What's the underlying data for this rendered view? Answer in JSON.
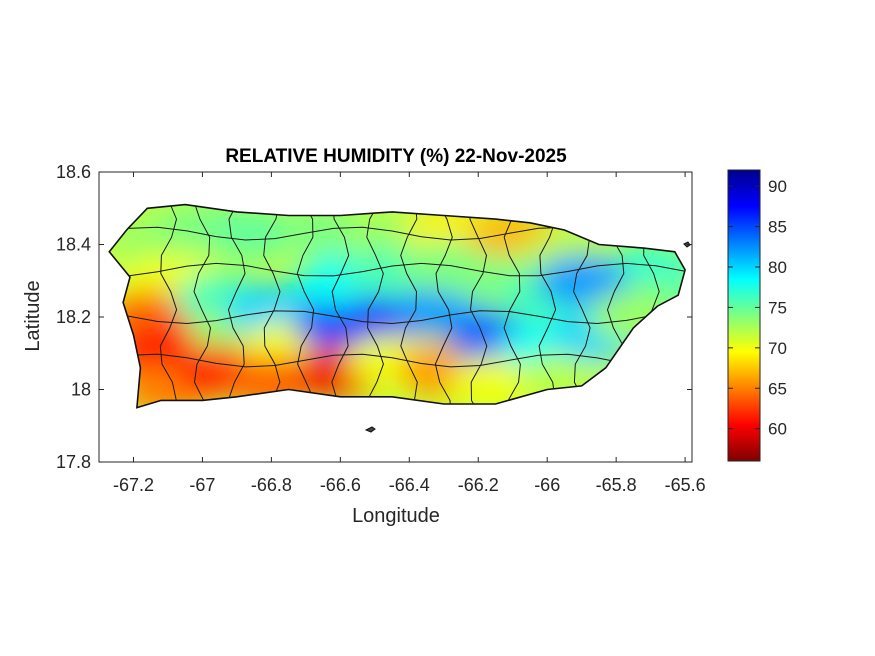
{
  "title": "RELATIVE HUMIDITY (%) 22-Nov-2025",
  "axes": {
    "xlabel": "Longitude",
    "ylabel": "Latitude",
    "xlim": [
      -67.3,
      -65.58
    ],
    "ylim": [
      17.8,
      18.6
    ],
    "xticks": [
      -67.2,
      -67,
      -66.8,
      -66.6,
      -66.4,
      -66.2,
      -66,
      -65.8,
      -65.6
    ],
    "xtick_labels": [
      "-67.2",
      "-67",
      "-66.8",
      "-66.6",
      "-66.4",
      "-66.2",
      "-66",
      "-65.8",
      "-65.6"
    ],
    "yticks": [
      17.8,
      18,
      18.2,
      18.4,
      18.6
    ],
    "ytick_labels": [
      "17.8",
      "18",
      "18.2",
      "18.4",
      "18.6"
    ]
  },
  "colorbar": {
    "colormap": "jet",
    "range": [
      56,
      92
    ],
    "ticks": [
      60,
      65,
      70,
      75,
      80,
      85,
      90
    ],
    "tick_labels": [
      "60",
      "65",
      "70",
      "75",
      "80",
      "85",
      "90"
    ],
    "stops": [
      "#800000",
      "#ff0000",
      "#ff8000",
      "#ffff00",
      "#80ff80",
      "#00ffff",
      "#0080ff",
      "#0000ff",
      "#000090"
    ]
  },
  "chart_data": {
    "type": "heatmap",
    "title": "RELATIVE HUMIDITY (%) 22-Nov-2025",
    "xlabel": "Longitude",
    "ylabel": "Latitude",
    "xlim": [
      -67.3,
      -65.58
    ],
    "ylim": [
      17.8,
      18.6
    ],
    "value_range": [
      56,
      92
    ],
    "units": "%",
    "region_outline": [
      [
        -67.27,
        18.38
      ],
      [
        -67.22,
        18.44
      ],
      [
        -67.16,
        18.5
      ],
      [
        -67.05,
        18.51
      ],
      [
        -66.9,
        18.49
      ],
      [
        -66.75,
        18.48
      ],
      [
        -66.6,
        18.48
      ],
      [
        -66.45,
        18.49
      ],
      [
        -66.3,
        18.48
      ],
      [
        -66.15,
        18.47
      ],
      [
        -66.05,
        18.46
      ],
      [
        -65.95,
        18.44
      ],
      [
        -65.85,
        18.4
      ],
      [
        -65.72,
        18.39
      ],
      [
        -65.63,
        18.38
      ],
      [
        -65.6,
        18.33
      ],
      [
        -65.62,
        18.26
      ],
      [
        -65.68,
        18.23
      ],
      [
        -65.75,
        18.17
      ],
      [
        -65.83,
        18.06
      ],
      [
        -65.9,
        18.01
      ],
      [
        -66.0,
        18.0
      ],
      [
        -66.15,
        17.96
      ],
      [
        -66.3,
        17.96
      ],
      [
        -66.45,
        17.98
      ],
      [
        -66.6,
        17.98
      ],
      [
        -66.75,
        18.0
      ],
      [
        -66.9,
        17.98
      ],
      [
        -67.0,
        17.97
      ],
      [
        -67.12,
        17.97
      ],
      [
        -67.19,
        17.95
      ],
      [
        -67.18,
        18.06
      ],
      [
        -67.2,
        18.15
      ],
      [
        -67.23,
        18.24
      ],
      [
        -67.21,
        18.31
      ]
    ],
    "field_samples": [
      {
        "lon": -67.15,
        "lat": 18.42,
        "rh": 73
      },
      {
        "lon": -67.0,
        "lat": 18.45,
        "rh": 74
      },
      {
        "lon": -66.85,
        "lat": 18.43,
        "rh": 75
      },
      {
        "lon": -66.65,
        "lat": 18.44,
        "rh": 74
      },
      {
        "lon": -66.45,
        "lat": 18.42,
        "rh": 73
      },
      {
        "lon": -66.28,
        "lat": 18.43,
        "rh": 69
      },
      {
        "lon": -66.1,
        "lat": 18.42,
        "rh": 67
      },
      {
        "lon": -65.95,
        "lat": 18.36,
        "rh": 72
      },
      {
        "lon": -65.8,
        "lat": 18.29,
        "rh": 90
      },
      {
        "lon": -65.7,
        "lat": 18.33,
        "rh": 77
      },
      {
        "lon": -65.68,
        "lat": 18.25,
        "rh": 75
      },
      {
        "lon": -67.1,
        "lat": 18.3,
        "rh": 70
      },
      {
        "lon": -67.15,
        "lat": 18.2,
        "rh": 64
      },
      {
        "lon": -67.12,
        "lat": 18.1,
        "rh": 61
      },
      {
        "lon": -67.1,
        "lat": 18.0,
        "rh": 65
      },
      {
        "lon": -66.95,
        "lat": 18.25,
        "rh": 76
      },
      {
        "lon": -66.9,
        "lat": 18.15,
        "rh": 73
      },
      {
        "lon": -66.95,
        "lat": 18.05,
        "rh": 62
      },
      {
        "lon": -66.8,
        "lat": 18.22,
        "rh": 80
      },
      {
        "lon": -66.75,
        "lat": 18.12,
        "rh": 70
      },
      {
        "lon": -66.8,
        "lat": 18.02,
        "rh": 64
      },
      {
        "lon": -66.6,
        "lat": 18.18,
        "rh": 85
      },
      {
        "lon": -66.6,
        "lat": 18.05,
        "rh": 60
      },
      {
        "lon": -66.6,
        "lat": 18.3,
        "rh": 78
      },
      {
        "lon": -66.45,
        "lat": 18.2,
        "rh": 86
      },
      {
        "lon": -66.45,
        "lat": 18.08,
        "rh": 70
      },
      {
        "lon": -66.45,
        "lat": 18.32,
        "rh": 76
      },
      {
        "lon": -66.3,
        "lat": 18.22,
        "rh": 82
      },
      {
        "lon": -66.3,
        "lat": 18.05,
        "rh": 66
      },
      {
        "lon": -66.3,
        "lat": 18.34,
        "rh": 74
      },
      {
        "lon": -66.15,
        "lat": 18.14,
        "rh": 84
      },
      {
        "lon": -66.15,
        "lat": 18.02,
        "rh": 70
      },
      {
        "lon": -66.15,
        "lat": 18.3,
        "rh": 74
      },
      {
        "lon": -66.0,
        "lat": 18.12,
        "rh": 78
      },
      {
        "lon": -66.0,
        "lat": 18.25,
        "rh": 76
      },
      {
        "lon": -65.95,
        "lat": 18.03,
        "rh": 72
      },
      {
        "lon": -65.85,
        "lat": 18.15,
        "rh": 80
      },
      {
        "lon": -65.9,
        "lat": 18.3,
        "rh": 82
      },
      {
        "lon": -65.75,
        "lat": 18.2,
        "rh": 73
      }
    ]
  }
}
